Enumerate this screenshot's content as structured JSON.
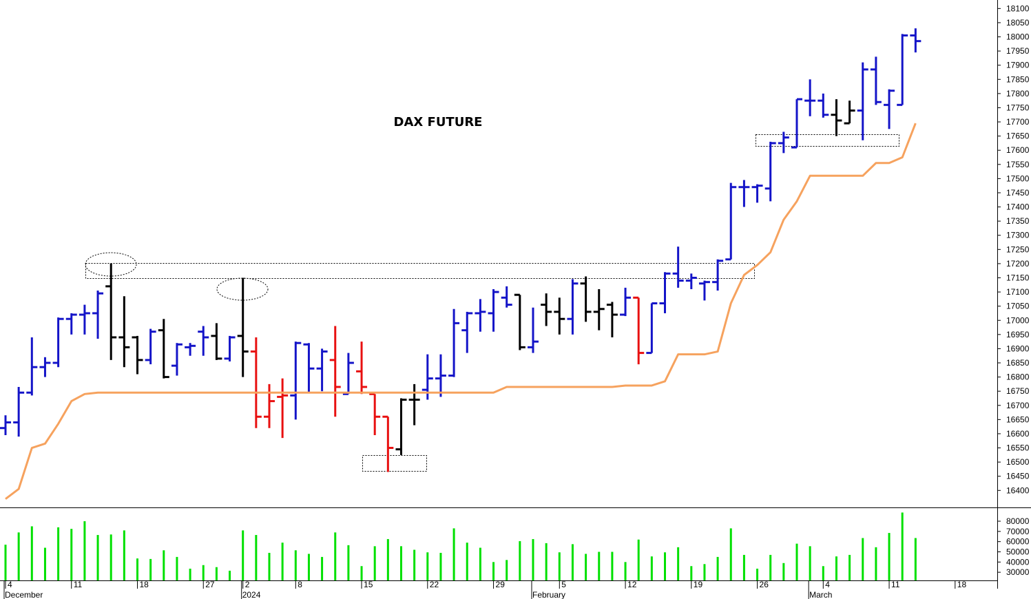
{
  "chart_data": [
    {
      "type": "ohlc",
      "title": "DAX FUTURE",
      "categories": [
        "4",
        null,
        null,
        null,
        null,
        "11",
        null,
        null,
        null,
        null,
        "18",
        null,
        null,
        null,
        null,
        "27",
        null,
        null,
        "2",
        null,
        null,
        null,
        "8",
        null,
        null,
        null,
        null,
        "15",
        null,
        null,
        null,
        null,
        "22",
        null,
        null,
        null,
        null,
        "29",
        null,
        null,
        null,
        null,
        "5",
        null,
        null,
        null,
        null,
        "12",
        null,
        null,
        null,
        null,
        "19",
        null,
        null,
        null,
        null,
        "26",
        null,
        null,
        null,
        null,
        "4",
        null,
        null,
        null,
        null,
        "11",
        null,
        null,
        null,
        null,
        "18",
        null,
        null,
        null
      ],
      "month_labels": [
        "December",
        null,
        null,
        null,
        null,
        null,
        null,
        null,
        null,
        null,
        null,
        null,
        null,
        null,
        null,
        null,
        null,
        null,
        "2024",
        null,
        null,
        null,
        null,
        null,
        null,
        null,
        null,
        null,
        null,
        null,
        null,
        null,
        null,
        null,
        null,
        null,
        null,
        null,
        null,
        null,
        "February",
        null,
        null,
        null,
        null,
        null,
        null,
        null,
        null,
        null,
        null,
        null,
        null,
        null,
        null,
        null,
        null,
        null,
        null,
        null,
        null,
        "March",
        null,
        null,
        null,
        null,
        null,
        null,
        null,
        null,
        null,
        null,
        null,
        null,
        null,
        null
      ],
      "open": [
        16620,
        16640,
        16745,
        16835,
        16850,
        17005,
        17020,
        17025,
        17120,
        16940,
        16940,
        16860,
        16965,
        16840,
        16905,
        16960,
        16945,
        16865,
        16945,
        16890,
        16660,
        16730,
        16735,
        16915,
        16830,
        16860,
        16740,
        16820,
        16740,
        16660,
        16545,
        16720,
        16755,
        16795,
        16805,
        16965,
        17025,
        17025,
        17080,
        17090,
        16905,
        17055,
        17030,
        17005,
        17130,
        17030,
        17055,
        17020,
        17080,
        16885,
        17060,
        17165,
        17140,
        17130,
        17135,
        17215,
        17470,
        17470,
        17465,
        17625,
        17610,
        17775,
        17775,
        17725,
        17695,
        17740,
        17885,
        17760,
        17760,
        18005,
        null,
        null,
        null,
        null,
        null,
        null
      ],
      "high": [
        16665,
        16765,
        16940,
        16870,
        17010,
        17025,
        17055,
        17105,
        17200,
        17085,
        16945,
        16970,
        17005,
        16920,
        16920,
        16980,
        16990,
        16945,
        17150,
        16940,
        16775,
        16795,
        16925,
        16920,
        16900,
        16980,
        16885,
        16925,
        16740,
        16660,
        16725,
        16775,
        16880,
        16880,
        17040,
        17030,
        17075,
        17110,
        17120,
        17090,
        17045,
        17095,
        17080,
        17145,
        17155,
        17110,
        17065,
        17115,
        17080,
        17060,
        17170,
        17260,
        17165,
        17140,
        17215,
        17485,
        17495,
        17480,
        17630,
        17665,
        17780,
        17850,
        17800,
        17780,
        17775,
        17910,
        17930,
        17815,
        18010,
        18030,
        null,
        null,
        null,
        null,
        null,
        null
      ],
      "low": [
        16595,
        16590,
        16735,
        16800,
        16835,
        16950,
        16950,
        16935,
        16860,
        16835,
        16810,
        16845,
        16795,
        16805,
        16875,
        16875,
        16860,
        16855,
        16800,
        16620,
        16620,
        16585,
        16650,
        16745,
        16750,
        16660,
        16740,
        16740,
        16595,
        16465,
        16525,
        16630,
        16720,
        16730,
        16800,
        16885,
        16960,
        16960,
        17045,
        16895,
        16885,
        16980,
        16950,
        16950,
        16995,
        16965,
        16940,
        17015,
        16845,
        16885,
        17025,
        17115,
        17110,
        17070,
        17105,
        17215,
        17400,
        17415,
        17420,
        17590,
        17610,
        17720,
        17715,
        17650,
        17695,
        17635,
        17760,
        17675,
        17760,
        17945,
        null,
        null,
        null,
        null,
        null,
        null
      ],
      "close": [
        16640,
        16745,
        16835,
        16850,
        17005,
        17020,
        17025,
        17095,
        16940,
        16905,
        16860,
        16960,
        16800,
        16915,
        16910,
        16940,
        16865,
        16940,
        16890,
        16660,
        16715,
        16735,
        16920,
        16830,
        16890,
        16765,
        16850,
        16765,
        16660,
        16550,
        16720,
        16720,
        16795,
        16805,
        16990,
        17025,
        17030,
        17100,
        17055,
        16905,
        16925,
        17030,
        17005,
        17130,
        17030,
        17040,
        17020,
        17080,
        16885,
        17060,
        17165,
        17140,
        17150,
        17135,
        17210,
        17470,
        17470,
        17475,
        17625,
        17645,
        17780,
        17775,
        17725,
        17705,
        17740,
        17885,
        17770,
        17810,
        18005,
        17985,
        null,
        null,
        null,
        null,
        null,
        null
      ],
      "bar_colors": [
        "#1414c8",
        "#1414c8",
        "#1414c8",
        "#1414c8",
        "#1414c8",
        "#1414c8",
        "#1414c8",
        "#1414c8",
        "#000000",
        "#000000",
        "#000000",
        "#1414c8",
        "#000000",
        "#1414c8",
        "#1414c8",
        "#1414c8",
        "#000000",
        "#1414c8",
        "#000000",
        "#e81010",
        "#e81010",
        "#e81010",
        "#1414c8",
        "#1414c8",
        "#1414c8",
        "#e81010",
        "#1414c8",
        "#e81010",
        "#e81010",
        "#e81010",
        "#000000",
        "#000000",
        "#1414c8",
        "#1414c8",
        "#1414c8",
        "#1414c8",
        "#1414c8",
        "#1414c8",
        "#1414c8",
        "#000000",
        "#1414c8",
        "#000000",
        "#000000",
        "#1414c8",
        "#000000",
        "#000000",
        "#000000",
        "#1414c8",
        "#e81010",
        "#1414c8",
        "#1414c8",
        "#1414c8",
        "#1414c8",
        "#1414c8",
        "#1414c8",
        "#1414c8",
        "#1414c8",
        "#1414c8",
        "#1414c8",
        "#1414c8",
        "#1414c8",
        "#1414c8",
        "#1414c8",
        "#000000",
        "#000000",
        "#1414c8",
        "#1414c8",
        "#1414c8",
        "#1414c8",
        "#1414c8",
        null,
        null,
        null,
        null,
        null,
        null
      ],
      "line": {
        "color": "#f6a25e",
        "values": [
          16370,
          16405,
          16550,
          16565,
          16635,
          16715,
          16740,
          16745,
          16745,
          16745,
          16745,
          16745,
          16745,
          16745,
          16745,
          16745,
          16745,
          16745,
          16745,
          16745,
          16745,
          16745,
          16745,
          16745,
          16745,
          16745,
          16745,
          16745,
          16745,
          16745,
          16745,
          16745,
          16745,
          16745,
          16745,
          16745,
          16745,
          16745,
          16765,
          16765,
          16765,
          16765,
          16765,
          16765,
          16765,
          16765,
          16765,
          16770,
          16770,
          16770,
          16785,
          16880,
          16880,
          16880,
          16890,
          17060,
          17160,
          17195,
          17240,
          17355,
          17420,
          17510,
          17510,
          17510,
          17510,
          17510,
          17555,
          17555,
          17575,
          17695,
          null,
          null,
          null,
          null,
          null,
          null
        ]
      },
      "ylim": [
        16340,
        18130
      ],
      "yticks": [
        16400,
        16450,
        16500,
        16550,
        16600,
        16650,
        16700,
        16750,
        16800,
        16850,
        16900,
        16950,
        17000,
        17050,
        17100,
        17150,
        17200,
        17250,
        17300,
        17350,
        17400,
        17450,
        17500,
        17550,
        17600,
        17650,
        17700,
        17750,
        17800,
        17850,
        17900,
        17950,
        18000,
        18050,
        18100
      ]
    },
    {
      "type": "bar",
      "color": "#00e000",
      "values": [
        57000,
        69000,
        75000,
        54000,
        74000,
        72500,
        80000,
        66500,
        67000,
        71000,
        43500,
        43000,
        51500,
        45000,
        33500,
        37000,
        35000,
        31500,
        71000,
        66500,
        49000,
        59000,
        51500,
        48000,
        45000,
        69000,
        56500,
        36000,
        55500,
        62500,
        55500,
        52000,
        49500,
        49000,
        73000,
        59000,
        54000,
        40000,
        42000,
        60500,
        62500,
        58500,
        49500,
        57500,
        48000,
        50000,
        50000,
        40000,
        62000,
        45500,
        49500,
        54500,
        36000,
        38000,
        45000,
        73000,
        47000,
        33500,
        47000,
        39000,
        58000,
        55500,
        36000,
        45500,
        47000,
        63500,
        54500,
        68500,
        88500,
        63500,
        null,
        null,
        null,
        null,
        null,
        null
      ],
      "ylim": [
        22000,
        93500
      ],
      "yticks": [
        30000,
        40000,
        50000,
        60000,
        70000,
        80000
      ]
    }
  ]
}
